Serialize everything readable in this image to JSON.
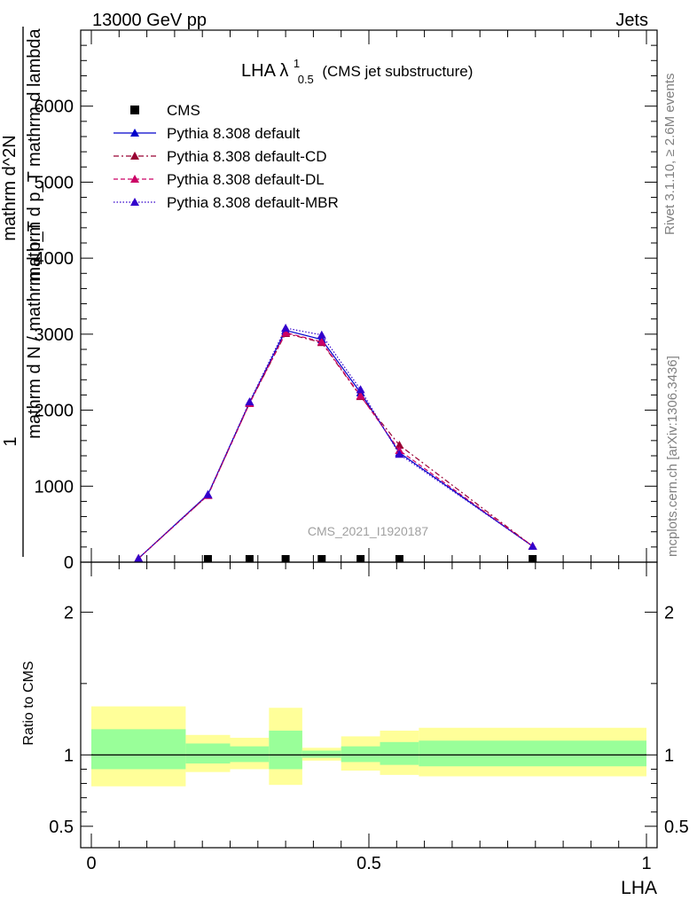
{
  "header": {
    "energy_label": "13000 GeV pp",
    "process_label": "Jets",
    "plot_title": "LHA λ",
    "plot_title_sup": "1",
    "plot_title_sub": "0.5",
    "plot_title_suffix": "(CMS jet substructure)",
    "watermark": "CMS_2021_I1920187",
    "side_label_top": "Rivet 3.1.10, ≥ 2.6M events",
    "side_label_bottom": "mcplots.cern.ch [arXiv:1306.3436]"
  },
  "legend": {
    "items": [
      {
        "label": "CMS",
        "color": "#000000",
        "style": "square"
      },
      {
        "label": "Pythia 8.308 default",
        "color": "#0000cc",
        "style": "solid"
      },
      {
        "label": "Pythia 8.308 default-CD",
        "color": "#990033",
        "style": "dashdot"
      },
      {
        "label": "Pythia 8.308 default-DL",
        "color": "#cc0066",
        "style": "dashed"
      },
      {
        "label": "Pythia 8.308 default-MBR",
        "color": "#3300cc",
        "style": "dotted"
      }
    ]
  },
  "chart_data": [
    {
      "type": "line",
      "ylabel_lines": [
        "1",
        "mathrm d N / mathrm d p_T",
        "mathrm d^2N",
        "mathrm d p_T mathrm d lambda"
      ],
      "xlim": [
        -0.02,
        1.02
      ],
      "ylim": [
        0,
        7000
      ],
      "yticks": [
        0,
        1000,
        2000,
        3000,
        4000,
        5000,
        6000
      ],
      "ytick_labels": [
        "0",
        "1000",
        "2000",
        "3000",
        "4000",
        "5000",
        "6000"
      ],
      "cms_x": [
        0.21,
        0.285,
        0.35,
        0.415,
        0.485,
        0.555,
        0.795
      ],
      "cms_y": [
        0,
        0,
        0,
        0,
        0,
        0,
        0
      ],
      "series": [
        {
          "name": "Pythia 8.308 default",
          "color": "#0000cc",
          "dash": "",
          "x": [
            0.085,
            0.21,
            0.285,
            0.35,
            0.415,
            0.485,
            0.555,
            0.795
          ],
          "y": [
            50,
            890,
            2100,
            3050,
            2930,
            2230,
            1440,
            210
          ]
        },
        {
          "name": "Pythia 8.308 default-CD",
          "color": "#990033",
          "dash": "6,3,2,3",
          "x": [
            0.085,
            0.21,
            0.285,
            0.35,
            0.415,
            0.485,
            0.555,
            0.795
          ],
          "y": [
            50,
            880,
            2090,
            3010,
            2890,
            2180,
            1540,
            210
          ]
        },
        {
          "name": "Pythia 8.308 default-DL",
          "color": "#cc0066",
          "dash": "5,3",
          "x": [
            0.085,
            0.21,
            0.285,
            0.35,
            0.415,
            0.485,
            0.555,
            0.795
          ],
          "y": [
            50,
            880,
            2090,
            3020,
            2900,
            2190,
            1470,
            210
          ]
        },
        {
          "name": "Pythia 8.308 default-MBR",
          "color": "#3300cc",
          "dash": "1.5,2",
          "x": [
            0.085,
            0.21,
            0.285,
            0.35,
            0.415,
            0.485,
            0.555,
            0.795
          ],
          "y": [
            50,
            890,
            2110,
            3080,
            2990,
            2270,
            1420,
            210
          ]
        }
      ]
    },
    {
      "type": "area",
      "ylabel": "Ratio to CMS",
      "xlabel": "LHA",
      "xlim": [
        -0.02,
        1.02
      ],
      "ylim": [
        0.35,
        2.35
      ],
      "yticks": [
        0.5,
        1,
        2
      ],
      "ytick_labels": [
        "0.5",
        "1",
        "2"
      ],
      "xticks": [
        0,
        0.5,
        1
      ],
      "xtick_labels": [
        "0",
        "0.5",
        "1"
      ],
      "reference_line": 1,
      "bins": [
        {
          "xlo": 0.0,
          "xhi": 0.17,
          "stat_lo": 0.9,
          "stat_hi": 1.18,
          "tot_lo": 0.78,
          "tot_hi": 1.34
        },
        {
          "xlo": 0.17,
          "xhi": 0.25,
          "stat_lo": 0.94,
          "stat_hi": 1.08,
          "tot_lo": 0.88,
          "tot_hi": 1.14
        },
        {
          "xlo": 0.25,
          "xhi": 0.32,
          "stat_lo": 0.95,
          "stat_hi": 1.06,
          "tot_lo": 0.9,
          "tot_hi": 1.12
        },
        {
          "xlo": 0.32,
          "xhi": 0.38,
          "stat_lo": 0.9,
          "stat_hi": 1.17,
          "tot_lo": 0.79,
          "tot_hi": 1.33
        },
        {
          "xlo": 0.38,
          "xhi": 0.45,
          "stat_lo": 0.98,
          "stat_hi": 1.03,
          "tot_lo": 0.96,
          "tot_hi": 1.05
        },
        {
          "xlo": 0.45,
          "xhi": 0.52,
          "stat_lo": 0.95,
          "stat_hi": 1.06,
          "tot_lo": 0.89,
          "tot_hi": 1.13
        },
        {
          "xlo": 0.52,
          "xhi": 0.59,
          "stat_lo": 0.93,
          "stat_hi": 1.09,
          "tot_lo": 0.86,
          "tot_hi": 1.17
        },
        {
          "xlo": 0.59,
          "xhi": 1.0,
          "stat_lo": 0.92,
          "stat_hi": 1.1,
          "tot_lo": 0.85,
          "tot_hi": 1.19
        }
      ]
    }
  ]
}
